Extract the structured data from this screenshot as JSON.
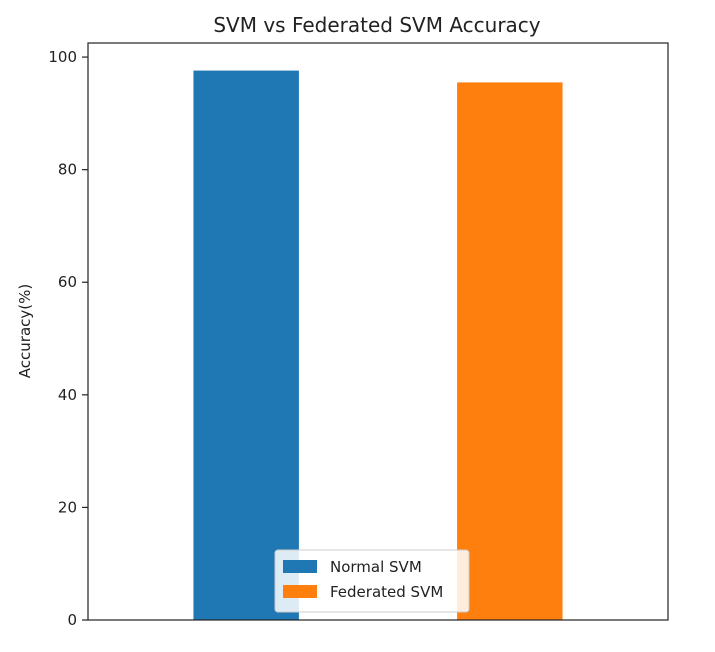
{
  "chart_data": {
    "type": "bar",
    "title": "SVM vs Federated SVM Accuracy",
    "xlabel": "",
    "ylabel": "Accuracy(%)",
    "categories": [
      "Normal SVM",
      "Federated SVM"
    ],
    "values": [
      97.6,
      95.5
    ],
    "colors": [
      "#1f77b4",
      "#ff7f0e"
    ],
    "ylim": [
      0,
      102.5
    ],
    "yticks": [
      0,
      20,
      40,
      60,
      80,
      100
    ],
    "xticks_visible": false,
    "grid": false,
    "legend": {
      "placement": "lower-center",
      "entries": [
        "Normal SVM",
        "Federated SVM"
      ]
    }
  }
}
